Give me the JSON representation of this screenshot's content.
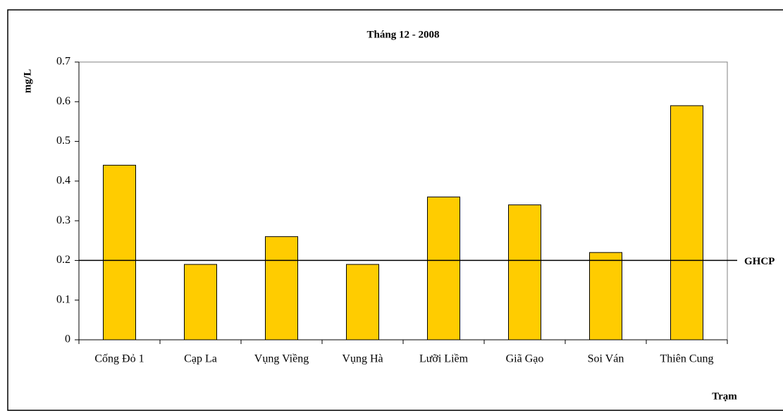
{
  "chart_data": {
    "type": "bar",
    "title": "Tháng 12 - 2008",
    "y_label": "mg/L",
    "x_label": "Trạm",
    "categories": [
      "Cống Đỏ 1",
      "Cạp  La",
      "Vụng Viềng",
      "Vụng Hà",
      "Lưỡi Liềm",
      "Giã Gạo",
      "Soi Ván",
      "Thiên Cung"
    ],
    "values": [
      0.44,
      0.19,
      0.26,
      0.19,
      0.36,
      0.34,
      0.22,
      0.59
    ],
    "color": "#ffcc00",
    "ylim": [
      0,
      0.7
    ],
    "yticks": [
      0,
      0.1,
      0.2,
      0.3,
      0.4,
      0.5,
      0.6,
      0.7
    ],
    "grid": false,
    "reference_line": {
      "value": 0.2,
      "label": "GHCP"
    }
  }
}
